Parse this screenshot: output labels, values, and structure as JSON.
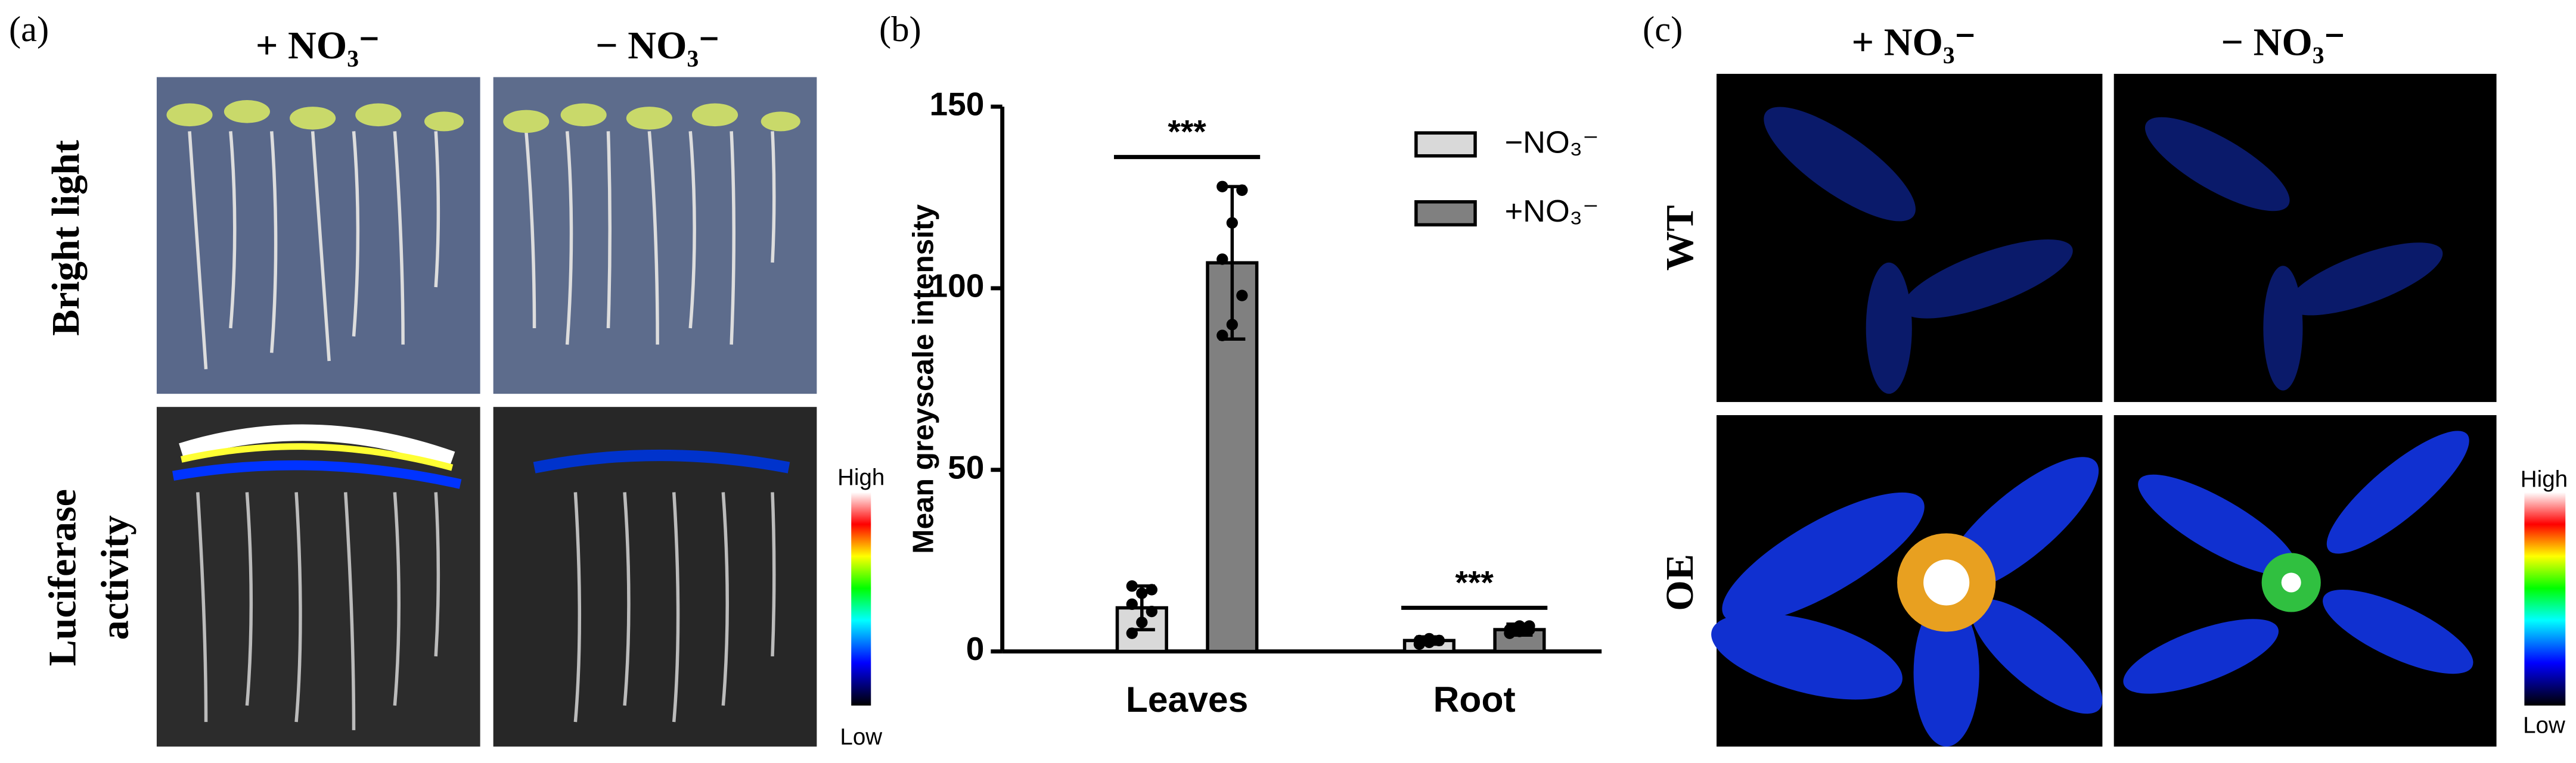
{
  "panel_a": {
    "label": "(a)",
    "columns": [
      "+ NO₃⁻",
      "− NO₃⁻"
    ],
    "rows": [
      "Bright light",
      "Luciferase",
      "activity"
    ],
    "scale": [
      "High",
      "Low"
    ]
  },
  "chart_data": {
    "type": "bar",
    "label": "(b)",
    "ylabel": "Mean greyscale intensity",
    "categories": [
      "Leaves",
      "Root"
    ],
    "series": [
      {
        "name": "−NO₃⁻",
        "color": "#d9d9d9",
        "values": [
          12,
          3
        ],
        "errors": [
          6,
          1
        ],
        "points": [
          [
            5,
            8,
            11,
            13,
            16,
            17,
            18
          ],
          [
            2,
            2.5,
            3,
            3,
            3.5,
            3
          ]
        ]
      },
      {
        "name": "+NO₃⁻",
        "color": "#808080",
        "values": [
          107,
          6
        ],
        "errors": [
          21,
          1.5
        ],
        "points": [
          [
            87,
            90,
            98,
            108,
            118,
            127,
            128
          ],
          [
            5,
            5.5,
            6,
            6,
            7,
            7
          ]
        ]
      }
    ],
    "annotations": [
      "***",
      "***"
    ],
    "ylim": [
      0,
      150
    ],
    "yticks": [
      0,
      50,
      100,
      150
    ]
  },
  "panel_c": {
    "label": "(c)",
    "columns": [
      "+ NO₃⁻",
      "− NO₃⁻"
    ],
    "rows": [
      "WT",
      "OE"
    ],
    "scale": [
      "High",
      "Low"
    ]
  }
}
